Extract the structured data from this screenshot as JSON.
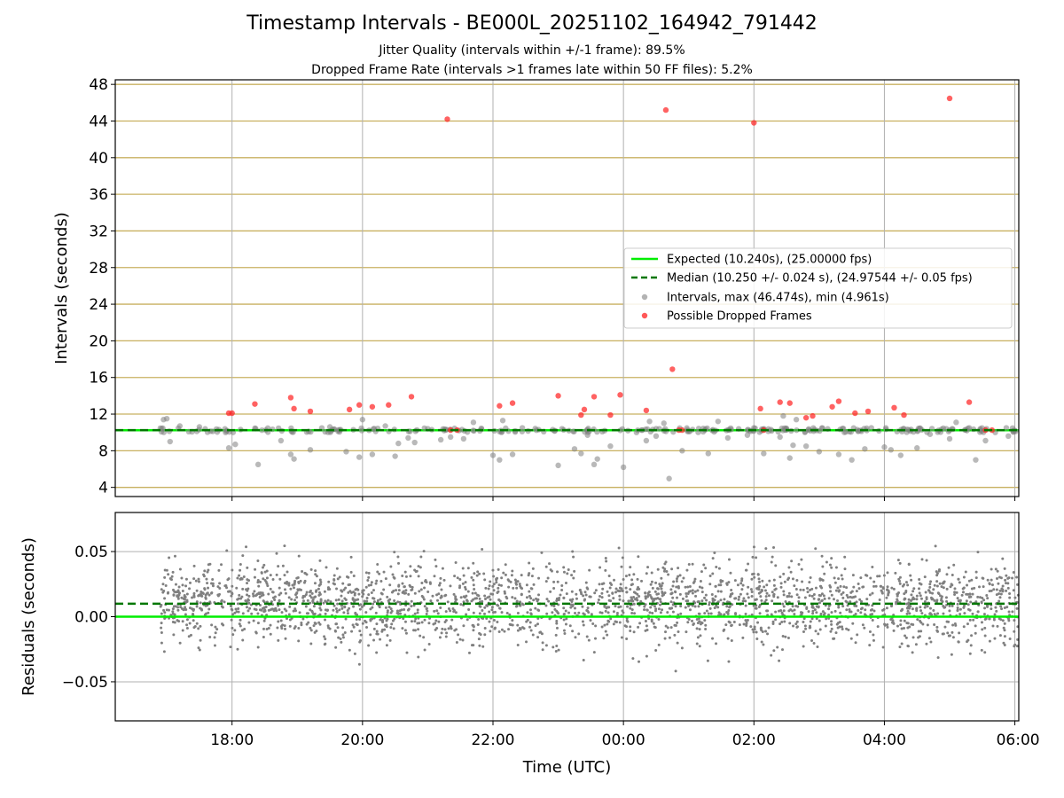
{
  "figure": {
    "title": "Timestamp Intervals - BE000L_20251102_164942_791442",
    "subtitle_1": "Jitter Quality (intervals within +/-1 frame): 89.5%",
    "subtitle_2": "Dropped Frame Rate (intervals >1 frames late within 50 FF files): 5.2%"
  },
  "colors": {
    "expected_line": "#00ee00",
    "median_line": "#007700",
    "intervals_points": "#808080",
    "dropped_points": "#ff2020",
    "y_gridlines_top": "#c8b060",
    "gridlines": "#b0b0b0"
  },
  "chart_data": [
    {
      "type": "scatter",
      "xlabel": "",
      "ylabel": "Intervals (seconds)",
      "x_unit": "hours since 16:00 UTC on the chart's time axis",
      "xlim": [
        16.21,
        30.06
      ],
      "ylim": [
        3.0,
        48.5
      ],
      "yticks": [
        4,
        8,
        12,
        16,
        20,
        24,
        28,
        32,
        36,
        40,
        44,
        48
      ],
      "xtick_positions": [
        18,
        20,
        22,
        24,
        26,
        28,
        30
      ],
      "grid": true,
      "legend_position": "center-right",
      "legend": [
        "Expected (10.240s), (25.00000 fps)",
        "Median (10.250 +/- 0.024 s), (24.97544 +/- 0.05 fps)",
        "Intervals, max (46.474s), min (4.961s)",
        "Possible Dropped Frames"
      ],
      "expected_value": 10.24,
      "median_value": 10.25,
      "series": [
        {
          "name": "Intervals, max (46.474s), min (4.961s)",
          "x": [
            16.95,
            17.0,
            17.05,
            17.2,
            17.5,
            17.8,
            17.95,
            18.05,
            18.4,
            18.75,
            18.9,
            18.95,
            19.2,
            19.5,
            19.75,
            19.95,
            20.0,
            20.15,
            20.35,
            20.5,
            20.55,
            20.7,
            20.8,
            21.0,
            21.2,
            21.35,
            21.55,
            21.7,
            22.0,
            22.1,
            22.15,
            22.3,
            22.45,
            22.7,
            23.0,
            23.25,
            23.35,
            23.45,
            23.55,
            23.6,
            23.8,
            24.0,
            24.2,
            24.35,
            24.4,
            24.5,
            24.55,
            24.62,
            24.7,
            24.9,
            25.0,
            25.3,
            25.45,
            25.6,
            25.9,
            26.0,
            26.15,
            26.4,
            26.45,
            26.55,
            26.6,
            26.65,
            26.8,
            27.0,
            27.3,
            27.5,
            27.7,
            27.8,
            28.0,
            28.1,
            28.25,
            28.5,
            28.7,
            29.0,
            29.1,
            29.3,
            29.4,
            29.55,
            29.7,
            29.9,
            30.0
          ],
          "y": [
            11.4,
            11.5,
            9.0,
            10.7,
            10.6,
            10.3,
            8.3,
            8.7,
            6.5,
            9.1,
            7.6,
            7.1,
            8.1,
            10.6,
            7.9,
            7.3,
            11.4,
            7.6,
            10.7,
            7.4,
            8.8,
            9.4,
            8.9,
            10.4,
            9.2,
            9.5,
            9.3,
            11.1,
            7.5,
            7.0,
            11.3,
            7.6,
            10.5,
            10.3,
            6.4,
            8.2,
            7.7,
            9.7,
            6.5,
            7.1,
            8.5,
            6.2,
            10.0,
            9.1,
            11.2,
            9.6,
            10.4,
            11.0,
            4.96,
            8.0,
            10.1,
            7.7,
            11.2,
            9.4,
            9.7,
            10.5,
            7.7,
            9.5,
            11.8,
            7.2,
            8.6,
            11.4,
            8.5,
            7.9,
            7.6,
            7.0,
            8.2,
            10.5,
            8.4,
            8.1,
            7.5,
            8.3,
            9.8,
            9.3,
            11.1,
            10.5,
            7.0,
            9.1,
            10.0,
            9.6,
            10.2
          ]
        },
        {
          "name": "Possible Dropped Frames",
          "x": [
            17.95,
            18.0,
            18.35,
            18.9,
            18.95,
            19.2,
            19.8,
            19.95,
            20.15,
            20.4,
            20.75,
            21.3,
            21.35,
            21.45,
            22.1,
            22.3,
            23.0,
            23.35,
            23.4,
            23.55,
            23.8,
            23.95,
            24.35,
            24.65,
            24.75,
            24.85,
            24.9,
            26.0,
            26.1,
            26.15,
            26.4,
            26.55,
            26.8,
            26.9,
            27.2,
            27.3,
            27.55,
            27.75,
            28.15,
            28.3,
            29.0,
            29.3,
            29.55,
            29.65
          ],
          "y": [
            12.1,
            12.1,
            13.1,
            13.8,
            12.6,
            12.3,
            12.5,
            13.0,
            12.8,
            13.0,
            13.9,
            44.2,
            10.25,
            10.25,
            12.9,
            13.2,
            14.0,
            11.9,
            12.5,
            13.9,
            11.9,
            14.1,
            12.4,
            45.2,
            16.9,
            10.25,
            10.25,
            43.8,
            12.6,
            10.25,
            13.3,
            13.2,
            11.6,
            11.8,
            12.8,
            13.4,
            12.1,
            12.3,
            12.7,
            11.9,
            46.47,
            13.3,
            10.25,
            10.25
          ]
        }
      ]
    },
    {
      "type": "scatter",
      "xlabel": "Time (UTC)",
      "ylabel": "Residuals (seconds)",
      "xlim": [
        16.21,
        30.06
      ],
      "ylim": [
        -0.08,
        0.08
      ],
      "yticks": [
        -0.05,
        0.0,
        0.05
      ],
      "ytick_labels": [
        "−0.05",
        "0.00",
        "0.05"
      ],
      "xtick_positions": [
        18,
        20,
        22,
        24,
        26,
        28,
        30
      ],
      "xtick_labels": [
        "18:00",
        "20:00",
        "22:00",
        "00:00",
        "02:00",
        "04:00",
        "06:00"
      ],
      "grid": true,
      "reference_lines": {
        "expected": 0.0,
        "median": 0.01
      },
      "series": [
        {
          "name": "Residuals",
          "x_range": [
            16.9,
            30.06
          ],
          "y_center": 0.01,
          "y_spread": 0.025,
          "count": 2600
        }
      ]
    }
  ]
}
